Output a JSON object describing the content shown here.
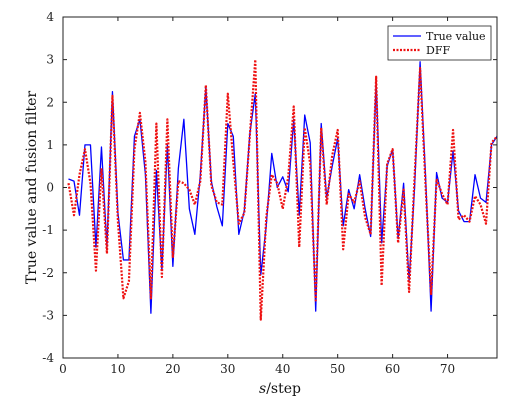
{
  "chart_data": {
    "type": "line",
    "xlabel_italic": "s",
    "xlabel_rest": "/step",
    "ylabel": "True value and fusion filter",
    "xlim": [
      0,
      79
    ],
    "ylim": [
      -4,
      4
    ],
    "xticks": [
      0,
      10,
      20,
      30,
      40,
      50,
      60,
      70
    ],
    "yticks": [
      -4,
      -3,
      -2,
      -1,
      0,
      1,
      2,
      3,
      4
    ],
    "grid": false,
    "legend_position": "top-right",
    "series": [
      {
        "name": "True value",
        "color": "#0000ff",
        "style": "solid",
        "x": [
          1,
          2,
          3,
          4,
          5,
          6,
          7,
          8,
          9,
          10,
          11,
          12,
          13,
          14,
          15,
          16,
          17,
          18,
          19,
          20,
          21,
          22,
          23,
          24,
          25,
          26,
          27,
          28,
          29,
          30,
          31,
          32,
          33,
          34,
          35,
          36,
          37,
          38,
          39,
          40,
          41,
          42,
          43,
          44,
          45,
          46,
          47,
          48,
          49,
          50,
          51,
          52,
          53,
          54,
          55,
          56,
          57,
          58,
          59,
          60,
          61,
          62,
          63,
          64,
          65,
          66,
          67,
          68,
          69,
          70,
          71,
          72,
          73,
          74,
          75,
          76,
          77,
          78,
          79
        ],
        "values": [
          0.2,
          0.15,
          -0.65,
          1.0,
          1.0,
          -1.4,
          0.95,
          -1.4,
          2.25,
          -0.6,
          -1.7,
          -1.7,
          1.2,
          1.6,
          0.3,
          -2.95,
          0.4,
          -1.95,
          1.0,
          -1.85,
          0.45,
          1.6,
          -0.5,
          -1.1,
          0.3,
          2.35,
          0.15,
          -0.45,
          -0.9,
          1.5,
          1.2,
          -1.1,
          -0.55,
          1.25,
          2.2,
          -2.05,
          -0.9,
          0.8,
          0.0,
          0.25,
          -0.1,
          1.6,
          -0.65,
          1.7,
          1.05,
          -2.9,
          1.5,
          -0.25,
          0.5,
          1.15,
          -0.9,
          -0.05,
          -0.5,
          0.3,
          -0.5,
          -1.15,
          2.5,
          -1.3,
          0.5,
          0.9,
          -1.2,
          0.1,
          -2.2,
          0.0,
          2.95,
          0.25,
          -2.9,
          0.35,
          -0.25,
          -0.35,
          0.85,
          -0.55,
          -0.8,
          -0.8,
          0.3,
          -0.25,
          -0.35,
          1.0,
          1.2
        ]
      },
      {
        "name": "DFF",
        "color": "#ee1111",
        "style": "dotted",
        "x": [
          1,
          2,
          3,
          4,
          5,
          6,
          7,
          8,
          9,
          10,
          11,
          12,
          13,
          14,
          15,
          16,
          17,
          18,
          19,
          20,
          21,
          22,
          23,
          24,
          25,
          26,
          27,
          28,
          29,
          30,
          31,
          32,
          33,
          34,
          35,
          36,
          37,
          38,
          39,
          40,
          41,
          42,
          43,
          44,
          45,
          46,
          47,
          48,
          49,
          50,
          51,
          52,
          53,
          54,
          55,
          56,
          57,
          58,
          59,
          60,
          61,
          62,
          63,
          64,
          65,
          66,
          67,
          68,
          69,
          70,
          71,
          72,
          73,
          74,
          75,
          76,
          77,
          78,
          79
        ],
        "values": [
          0.1,
          -0.65,
          0.3,
          0.9,
          0.1,
          -1.95,
          0.45,
          -1.55,
          2.15,
          -0.8,
          -2.6,
          -2.2,
          0.9,
          1.75,
          0.6,
          -2.6,
          1.5,
          -2.1,
          1.6,
          -1.65,
          0.15,
          0.1,
          -0.05,
          -0.4,
          0.15,
          2.4,
          0.05,
          -0.35,
          -0.4,
          2.2,
          0.6,
          -0.85,
          -0.6,
          1.2,
          3.0,
          -3.1,
          -0.7,
          0.3,
          0.1,
          -0.5,
          0.25,
          1.9,
          -1.4,
          1.4,
          0.55,
          -2.65,
          1.4,
          -0.4,
          0.75,
          1.35,
          -1.45,
          -0.15,
          -0.35,
          0.15,
          -0.7,
          -1.1,
          2.6,
          -2.3,
          0.55,
          0.9,
          -1.3,
          -0.05,
          -2.45,
          0.25,
          2.8,
          0.05,
          -2.5,
          0.2,
          -0.15,
          -0.4,
          1.35,
          -0.75,
          -0.65,
          -0.8,
          -0.2,
          -0.4,
          -0.85,
          1.05,
          1.2
        ]
      }
    ]
  }
}
